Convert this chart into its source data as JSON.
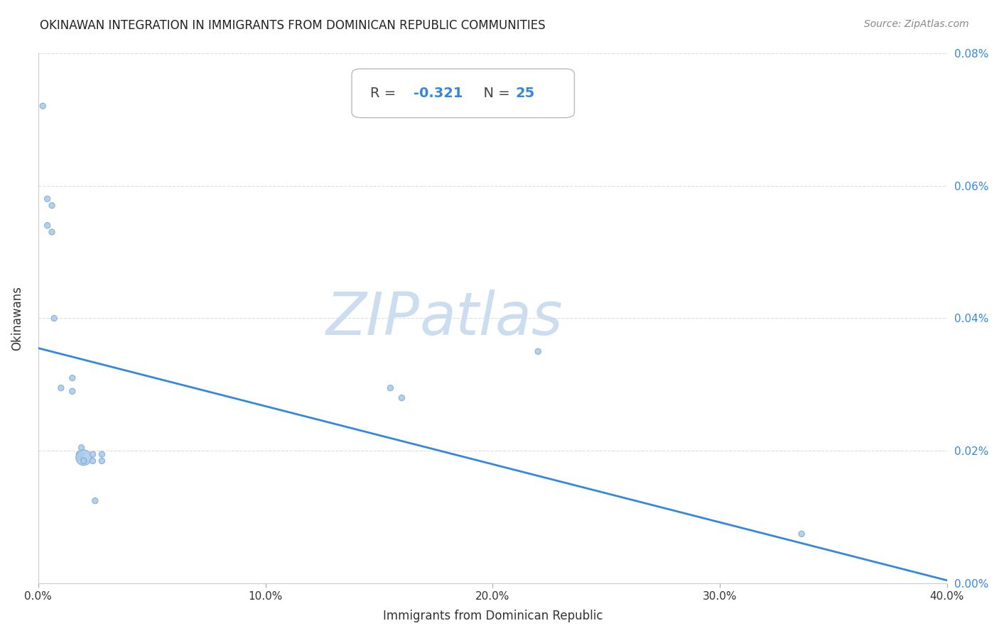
{
  "title": "OKINAWAN INTEGRATION IN IMMIGRANTS FROM DOMINICAN REPUBLIC COMMUNITIES",
  "source": "Source: ZipAtlas.com",
  "xlabel": "Immigrants from Dominican Republic",
  "ylabel": "Okinawans",
  "R": -0.321,
  "N": 25,
  "xlim": [
    0,
    0.4
  ],
  "ylim": [
    0,
    0.0008
  ],
  "xticks": [
    0.0,
    0.1,
    0.2,
    0.3,
    0.4
  ],
  "yticks": [
    0.0,
    0.0002,
    0.0004,
    0.0006,
    0.0008
  ],
  "ytick_labels_right": [
    "0.00%",
    "0.02%",
    "0.04%",
    "0.06%",
    "0.08%"
  ],
  "xtick_labels": [
    "0.0%",
    "10.0%",
    "20.0%",
    "30.0%",
    "40.0%"
  ],
  "regression_x0": 0.0,
  "regression_y0": 0.000355,
  "regression_x1": 0.4,
  "regression_y1": 5e-06,
  "scatter_x": [
    0.002,
    0.004,
    0.004,
    0.006,
    0.006,
    0.007,
    0.01,
    0.015,
    0.015,
    0.018,
    0.018,
    0.019,
    0.019,
    0.02,
    0.02,
    0.02,
    0.024,
    0.024,
    0.025,
    0.028,
    0.028,
    0.155,
    0.16,
    0.22,
    0.336
  ],
  "scatter_y": [
    0.00072,
    0.00058,
    0.00054,
    0.00057,
    0.00053,
    0.0004,
    0.000295,
    0.00031,
    0.00029,
    0.000195,
    0.00019,
    0.000205,
    0.000195,
    0.00019,
    0.000185,
    0.000185,
    0.000195,
    0.000185,
    0.000125,
    0.000195,
    0.000185,
    0.000295,
    0.00028,
    0.00035,
    7.5e-05
  ],
  "scatter_sizes": [
    35,
    35,
    35,
    35,
    35,
    35,
    35,
    35,
    35,
    35,
    35,
    35,
    35,
    250,
    35,
    35,
    35,
    35,
    35,
    35,
    35,
    35,
    35,
    35,
    35
  ],
  "dot_color": "#aaccee",
  "dot_edgecolor": "#88aacc",
  "line_color": "#3388dd",
  "watermark_zip_color": "#ccddf0",
  "watermark_atlas_color": "#ccddf0",
  "background_color": "#ffffff",
  "grid_color": "#dddddd",
  "title_color": "#222222",
  "source_color": "#888888",
  "label_color": "#333333",
  "tick_color": "#333333",
  "right_tick_color": "#3388dd",
  "box_face": "#ffffff",
  "box_edge": "#bbbbbb"
}
